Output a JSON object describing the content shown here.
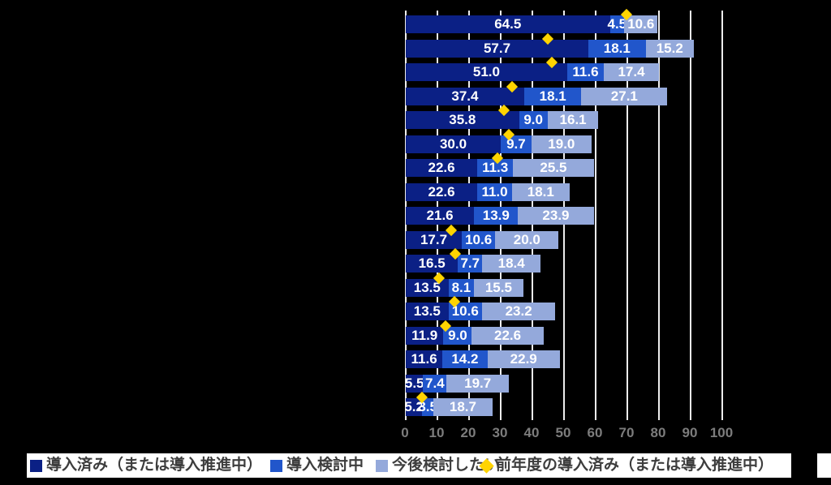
{
  "chart_data": {
    "type": "bar",
    "orientation": "horizontal",
    "stacked": true,
    "title": "",
    "xlabel": "",
    "ylabel": "",
    "xlim": [
      0,
      100
    ],
    "x_ticks": [
      0,
      10,
      20,
      30,
      40,
      50,
      60,
      70,
      80,
      90,
      100
    ],
    "grid": "vertical-white-on-black",
    "legend_position": "bottom",
    "categories": [
      "",
      "",
      "",
      "",
      "",
      "",
      "",
      "",
      "",
      "",
      "",
      "",
      "",
      "",
      "",
      "",
      ""
    ],
    "series": [
      {
        "name": "導入済み（または導入推進中）",
        "color": "#0b2085",
        "values": [
          64.5,
          57.7,
          51.0,
          37.4,
          35.8,
          30.0,
          22.6,
          22.6,
          21.6,
          17.7,
          16.5,
          13.5,
          13.5,
          11.9,
          11.6,
          5.5,
          5.2
        ]
      },
      {
        "name": "導入検討中",
        "color": "#2156cb",
        "values": [
          4.5,
          18.1,
          11.6,
          18.1,
          9.0,
          9.7,
          11.3,
          11.0,
          13.9,
          10.6,
          7.7,
          8.1,
          10.6,
          9.0,
          14.2,
          7.4,
          3.5
        ]
      },
      {
        "name": "今後検討したい",
        "color": "#94a9db",
        "values": [
          10.6,
          15.2,
          17.4,
          27.1,
          16.1,
          19.0,
          25.5,
          18.1,
          23.9,
          20.0,
          18.4,
          15.5,
          23.2,
          22.6,
          22.9,
          19.7,
          18.7
        ]
      },
      {
        "name": "前年度の導入済み（または導入推進中）",
        "marker": "diamond",
        "color": "#ffd400",
        "values": [
          70.0,
          45.0,
          46.4,
          33.8,
          31.2,
          32.8,
          29.3,
          null,
          null,
          14.6,
          15.9,
          10.7,
          15.7,
          12.7,
          null,
          null,
          5.4
        ]
      }
    ]
  },
  "axis": {
    "tick_labels": [
      "0",
      "10",
      "20",
      "30",
      "40",
      "50",
      "60",
      "70",
      "80",
      "90",
      "100"
    ]
  },
  "legend": {
    "items": [
      {
        "label": "導入済み（または導入推進中）",
        "swatch": "square",
        "color": "#0b2085"
      },
      {
        "label": "導入検討中",
        "swatch": "square",
        "color": "#2156cb"
      },
      {
        "label": "今後検討したい",
        "swatch": "square",
        "color": "#94a9db"
      },
      {
        "label": "前年度の導入済み（または導入推進中）",
        "swatch": "diamond",
        "color": "#ffd400"
      }
    ]
  },
  "colors": {
    "background": "#000000",
    "gridline": "#ededed",
    "bar_label_text": "#ffffff",
    "axis_tick_text": "#7c7c7c",
    "legend_background": "#ffffff",
    "legend_text": "#3d3d3d"
  }
}
